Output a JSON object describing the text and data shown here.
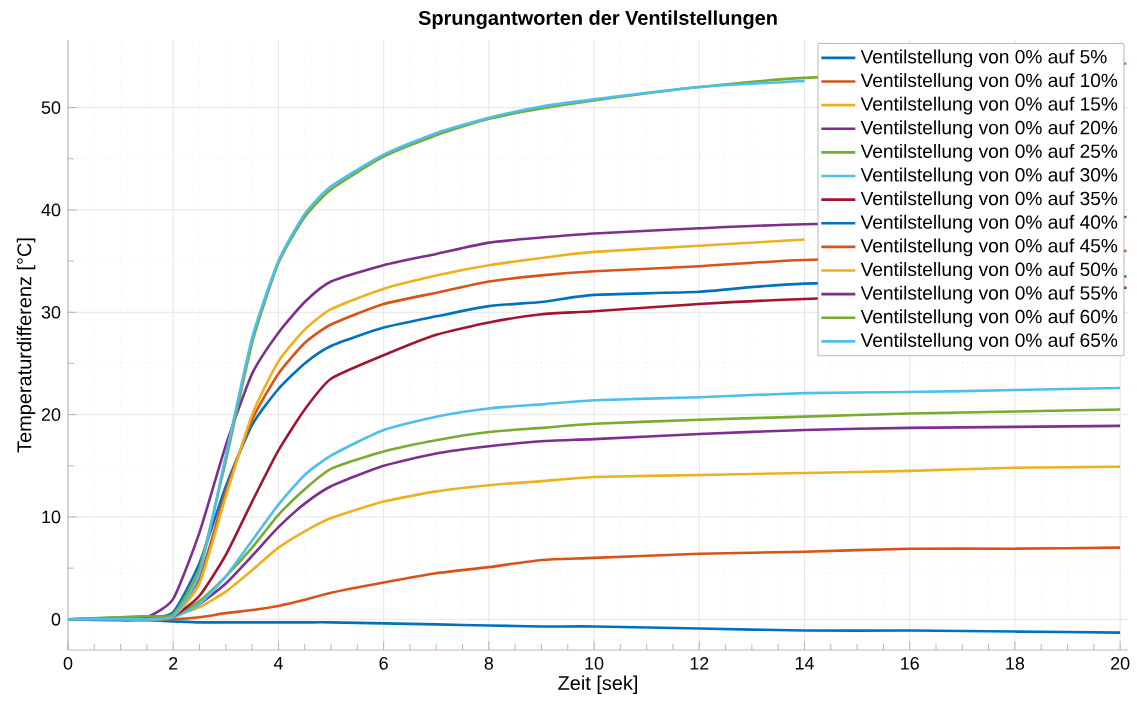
{
  "chart_data": {
    "type": "line",
    "title": "Sprungantworten der Ventilstellungen",
    "xlabel": "Zeit [sek]",
    "ylabel": "Temperaturdifferenz [°C]",
    "x": [
      0,
      1,
      1.5,
      2,
      2.5,
      3,
      3.5,
      4,
      4.5,
      5,
      6,
      7,
      8,
      9,
      10,
      12,
      14,
      16,
      18,
      20
    ],
    "xlim": [
      0,
      20.15
    ],
    "ylim": [
      -3,
      56.6
    ],
    "xticks": [
      0,
      2,
      4,
      6,
      8,
      10,
      12,
      14,
      16,
      18,
      20
    ],
    "yticks": [
      0,
      10,
      20,
      30,
      40,
      50
    ],
    "grid": true,
    "legend": "top right",
    "line_style": "solid",
    "marker": "none",
    "series": [
      {
        "name": "Ventilstellung von 0% auf 5%",
        "color": "#0072bd",
        "values": [
          0,
          -0.1,
          -0.1,
          -0.2,
          -0.3,
          -0.3,
          -0.3,
          -0.3,
          -0.3,
          -0.3,
          -0.4,
          -0.5,
          -0.6,
          -0.7,
          -0.7,
          -0.9,
          -1.1,
          -1.1,
          -1.2,
          -1.3
        ]
      },
      {
        "name": "Ventilstellung von 0% auf 10%",
        "color": "#d95319",
        "values": [
          null,
          null,
          0,
          0,
          0.2,
          0.6,
          0.9,
          1.3,
          1.9,
          2.6,
          3.6,
          4.5,
          5.1,
          5.8,
          6.0,
          6.4,
          6.6,
          6.9,
          6.9,
          7.0
        ]
      },
      {
        "name": "Ventilstellung von 0% auf 15%",
        "color": "#edb120",
        "values": [
          null,
          null,
          0.1,
          0.3,
          1.2,
          2.7,
          4.8,
          7.0,
          8.6,
          9.9,
          11.5,
          12.5,
          13.1,
          13.5,
          13.9,
          14.1,
          14.3,
          14.5,
          14.8,
          14.9
        ]
      },
      {
        "name": "Ventilstellung von 0% auf 20%",
        "color": "#7e2f8e",
        "values": [
          0,
          0,
          0.1,
          0.3,
          1.5,
          3.5,
          6.2,
          9.0,
          11.3,
          13.0,
          15.0,
          16.2,
          16.9,
          17.4,
          17.6,
          18.1,
          18.5,
          18.7,
          18.8,
          18.9
        ]
      },
      {
        "name": "Ventilstellung von 0% auf 25%",
        "color": "#77ac30",
        "values": [
          0,
          0.2,
          0.3,
          0.4,
          1.8,
          4.2,
          7.0,
          10.2,
          12.7,
          14.7,
          16.4,
          17.5,
          18.3,
          18.7,
          19.1,
          19.5,
          19.8,
          20.1,
          20.3,
          20.5
        ]
      },
      {
        "name": "Ventilstellung von 0% auf 30%",
        "color": "#4dbeee",
        "values": [
          0,
          0,
          0,
          0.2,
          1.5,
          4.2,
          7.7,
          11.2,
          14.1,
          16.0,
          18.5,
          19.8,
          20.6,
          21.0,
          21.4,
          21.7,
          22.1,
          22.2,
          22.4,
          22.6
        ]
      },
      {
        "name": "Ventilstellung von 0% auf 35%",
        "color": "#a2142f",
        "x": [
          1.5,
          2,
          2.5,
          3,
          3.5,
          4,
          4.5,
          5,
          6,
          7,
          8,
          9,
          10,
          12,
          14,
          20.12
        ],
        "values": [
          0,
          0.3,
          2.3,
          6.3,
          11.5,
          16.5,
          20.5,
          23.5,
          25.8,
          27.8,
          29.0,
          29.8,
          30.1,
          30.8,
          31.3,
          32.4
        ]
      },
      {
        "name": "Ventilstellung von 0% auf 40%",
        "color": "#0072bd",
        "x": [
          1.5,
          2,
          2.5,
          3,
          3.5,
          4,
          4.5,
          5,
          6,
          7,
          8,
          9,
          10,
          12,
          14,
          20.12
        ],
        "values": [
          0,
          0.7,
          5.5,
          13.0,
          19.0,
          22.5,
          25.0,
          26.7,
          28.5,
          29.6,
          30.6,
          31.0,
          31.7,
          32.0,
          32.8,
          33.5
        ]
      },
      {
        "name": "Ventilstellung von 0% auf 45%",
        "color": "#d95319",
        "x": [
          1.5,
          2,
          2.5,
          3,
          3.5,
          4,
          4.5,
          5,
          6,
          7,
          8,
          9,
          10,
          12,
          14,
          20.12
        ],
        "values": [
          0,
          0.5,
          4.0,
          12.5,
          19.5,
          24.0,
          27.0,
          28.8,
          30.8,
          31.9,
          33.0,
          33.6,
          34.0,
          34.5,
          35.1,
          36.0
        ]
      },
      {
        "name": "Ventilstellung von 0% auf 50%",
        "color": "#edb120",
        "x": [
          1.5,
          2,
          2.5,
          3,
          3.5,
          4,
          4.5,
          5,
          6,
          7,
          8,
          9,
          10,
          12,
          14
        ],
        "values": [
          0,
          0.3,
          3.5,
          12.0,
          20.0,
          25.2,
          28.3,
          30.3,
          32.3,
          33.6,
          34.6,
          35.3,
          35.9,
          36.5,
          37.1
        ]
      },
      {
        "name": "Ventilstellung von 0% auf 55%",
        "color": "#7e2f8e",
        "x": [
          0,
          1,
          1.5,
          2,
          2.5,
          3,
          3.5,
          4,
          4.5,
          5,
          6,
          7,
          8,
          9,
          10,
          12,
          14,
          20.12
        ],
        "values": [
          0,
          0.1,
          0.2,
          2.0,
          8.5,
          17.0,
          24.0,
          28.0,
          31.0,
          33.0,
          34.6,
          35.7,
          36.8,
          37.3,
          37.7,
          38.2,
          38.6,
          39.3
        ]
      },
      {
        "name": "Ventilstellung von 0% auf 60%",
        "color": "#77ac30",
        "x": [
          0,
          1,
          1.5,
          2,
          2.5,
          3,
          3.5,
          4,
          4.5,
          5,
          6,
          7,
          8,
          9,
          10,
          12,
          14,
          20.12
        ],
        "values": [
          0,
          0.2,
          0.3,
          0.5,
          5.0,
          15.5,
          27.0,
          34.8,
          39.3,
          42.0,
          45.2,
          47.3,
          48.9,
          49.9,
          50.7,
          52.0,
          52.9,
          54.3
        ]
      },
      {
        "name": "Ventilstellung von 0% auf 65%",
        "color": "#4dbeee",
        "x": [
          0,
          1,
          1.5,
          2,
          2.5,
          3,
          3.5,
          4,
          4.5,
          5,
          6,
          7,
          8,
          9,
          10,
          12,
          14
        ],
        "values": [
          0,
          0,
          0,
          0.3,
          4.5,
          16.0,
          27.5,
          35.0,
          39.6,
          42.3,
          45.4,
          47.5,
          49.0,
          50.1,
          50.8,
          52.0,
          52.6
        ]
      }
    ]
  }
}
